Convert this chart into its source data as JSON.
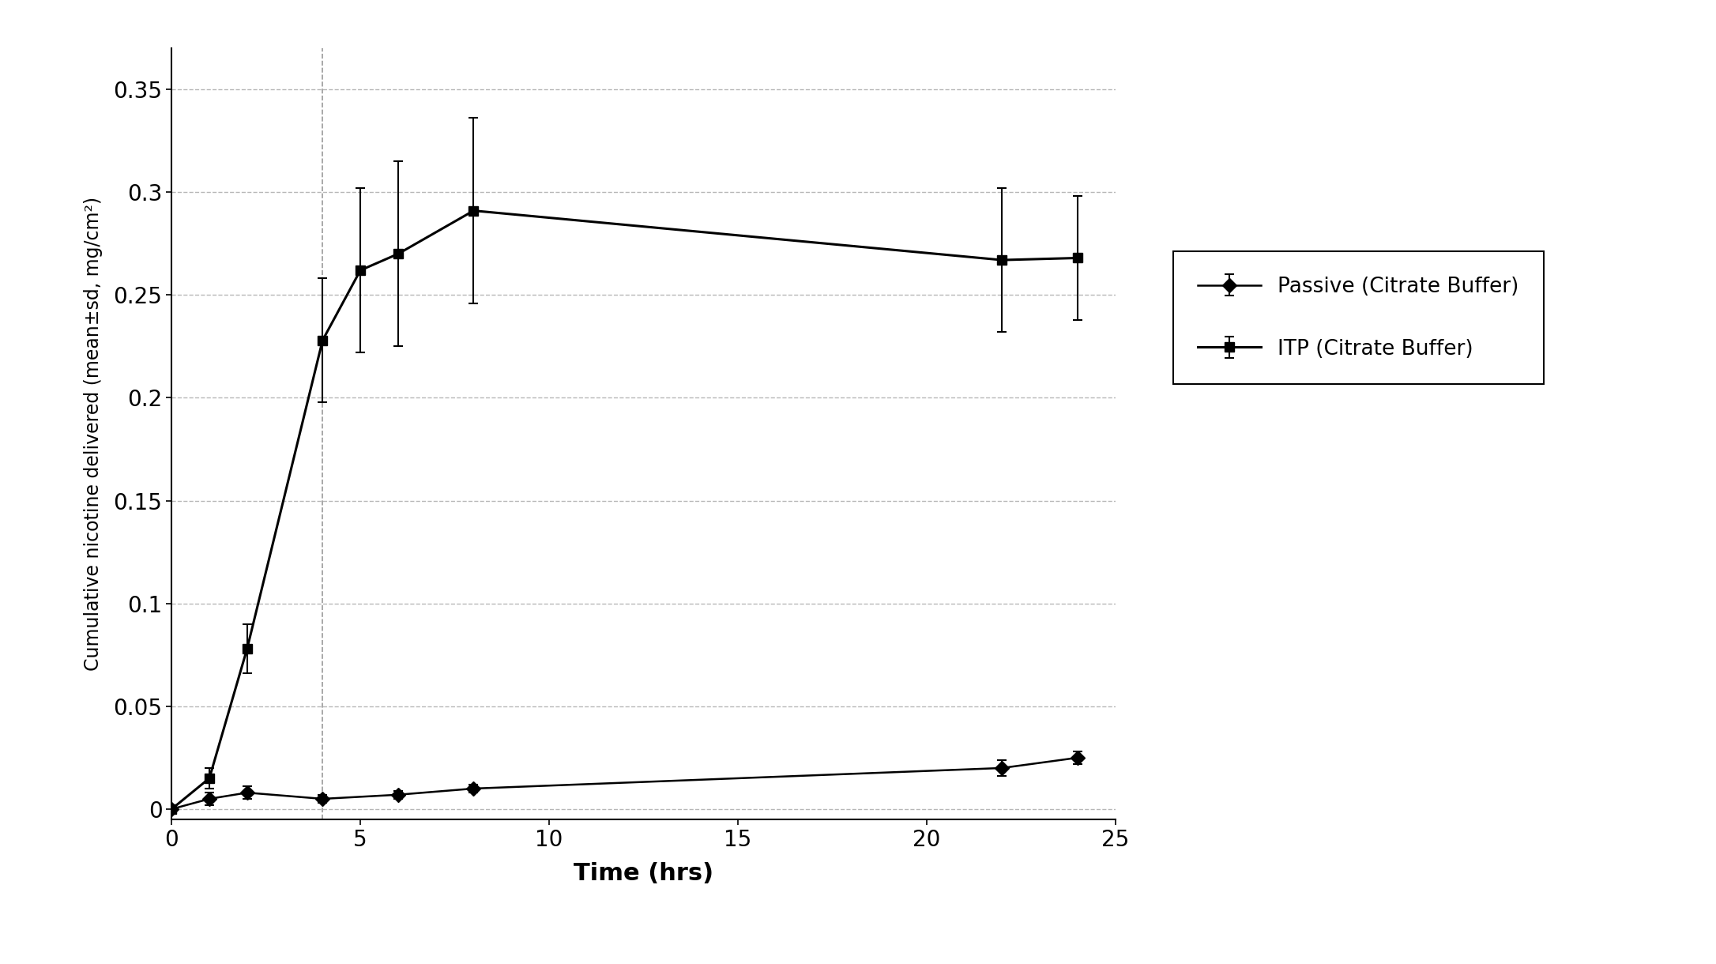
{
  "passive_x": [
    0,
    1,
    2,
    4,
    6,
    8,
    22,
    24
  ],
  "passive_y": [
    0.0,
    0.005,
    0.008,
    0.005,
    0.007,
    0.01,
    0.02,
    0.025
  ],
  "passive_yerr": [
    0.001,
    0.003,
    0.003,
    0.002,
    0.002,
    0.002,
    0.004,
    0.003
  ],
  "itp_x": [
    0,
    1,
    2,
    4,
    5,
    6,
    8,
    22,
    24
  ],
  "itp_y": [
    0.0,
    0.015,
    0.078,
    0.228,
    0.262,
    0.27,
    0.291,
    0.267,
    0.268
  ],
  "itp_yerr": [
    0.001,
    0.005,
    0.012,
    0.03,
    0.04,
    0.045,
    0.045,
    0.035,
    0.03
  ],
  "xlabel": "Time (hrs)",
  "ylabel": "Cumulative nicotine delivered (mean±sd, mg/cm²)",
  "xlim": [
    0,
    25
  ],
  "ylim": [
    -0.005,
    0.37
  ],
  "xticks": [
    0,
    5,
    10,
    15,
    20,
    25
  ],
  "yticks": [
    0.0,
    0.05,
    0.1,
    0.15,
    0.2,
    0.25,
    0.3,
    0.35
  ],
  "ytick_labels": [
    "0",
    "0.05",
    "0.1",
    "0.15",
    "0.2",
    "0.25",
    "0.3",
    "0.35"
  ],
  "grid_color": "#999999",
  "line_color": "#000000",
  "background_color": "#ffffff",
  "legend_passive": "Passive (Citrate Buffer)",
  "legend_itp": "ITP (Citrate Buffer)",
  "vline_x": 4
}
